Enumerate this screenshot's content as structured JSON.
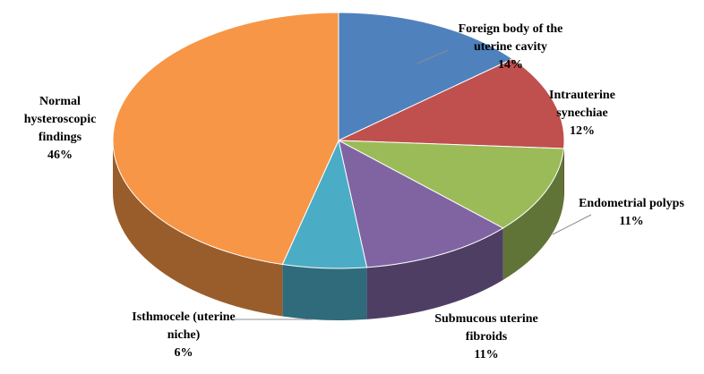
{
  "chart_data": {
    "type": "pie3d",
    "categories": [
      "Foreign body of the uterine cavity",
      "Intrauterine synechiae",
      "Endometrial polyps",
      "Submucous uterine fibroids",
      "Isthmocele (uterine niche)",
      "Normal hysteroscopic findings"
    ],
    "values": [
      14,
      12,
      11,
      11,
      6,
      46
    ],
    "value_labels": [
      "14%",
      "12%",
      "11%",
      "11%",
      "6%",
      "46%"
    ],
    "colors": [
      "#4f81bd",
      "#c0504d",
      "#9bbb59",
      "#8064a2",
      "#4bacc6",
      "#f79646"
    ]
  }
}
